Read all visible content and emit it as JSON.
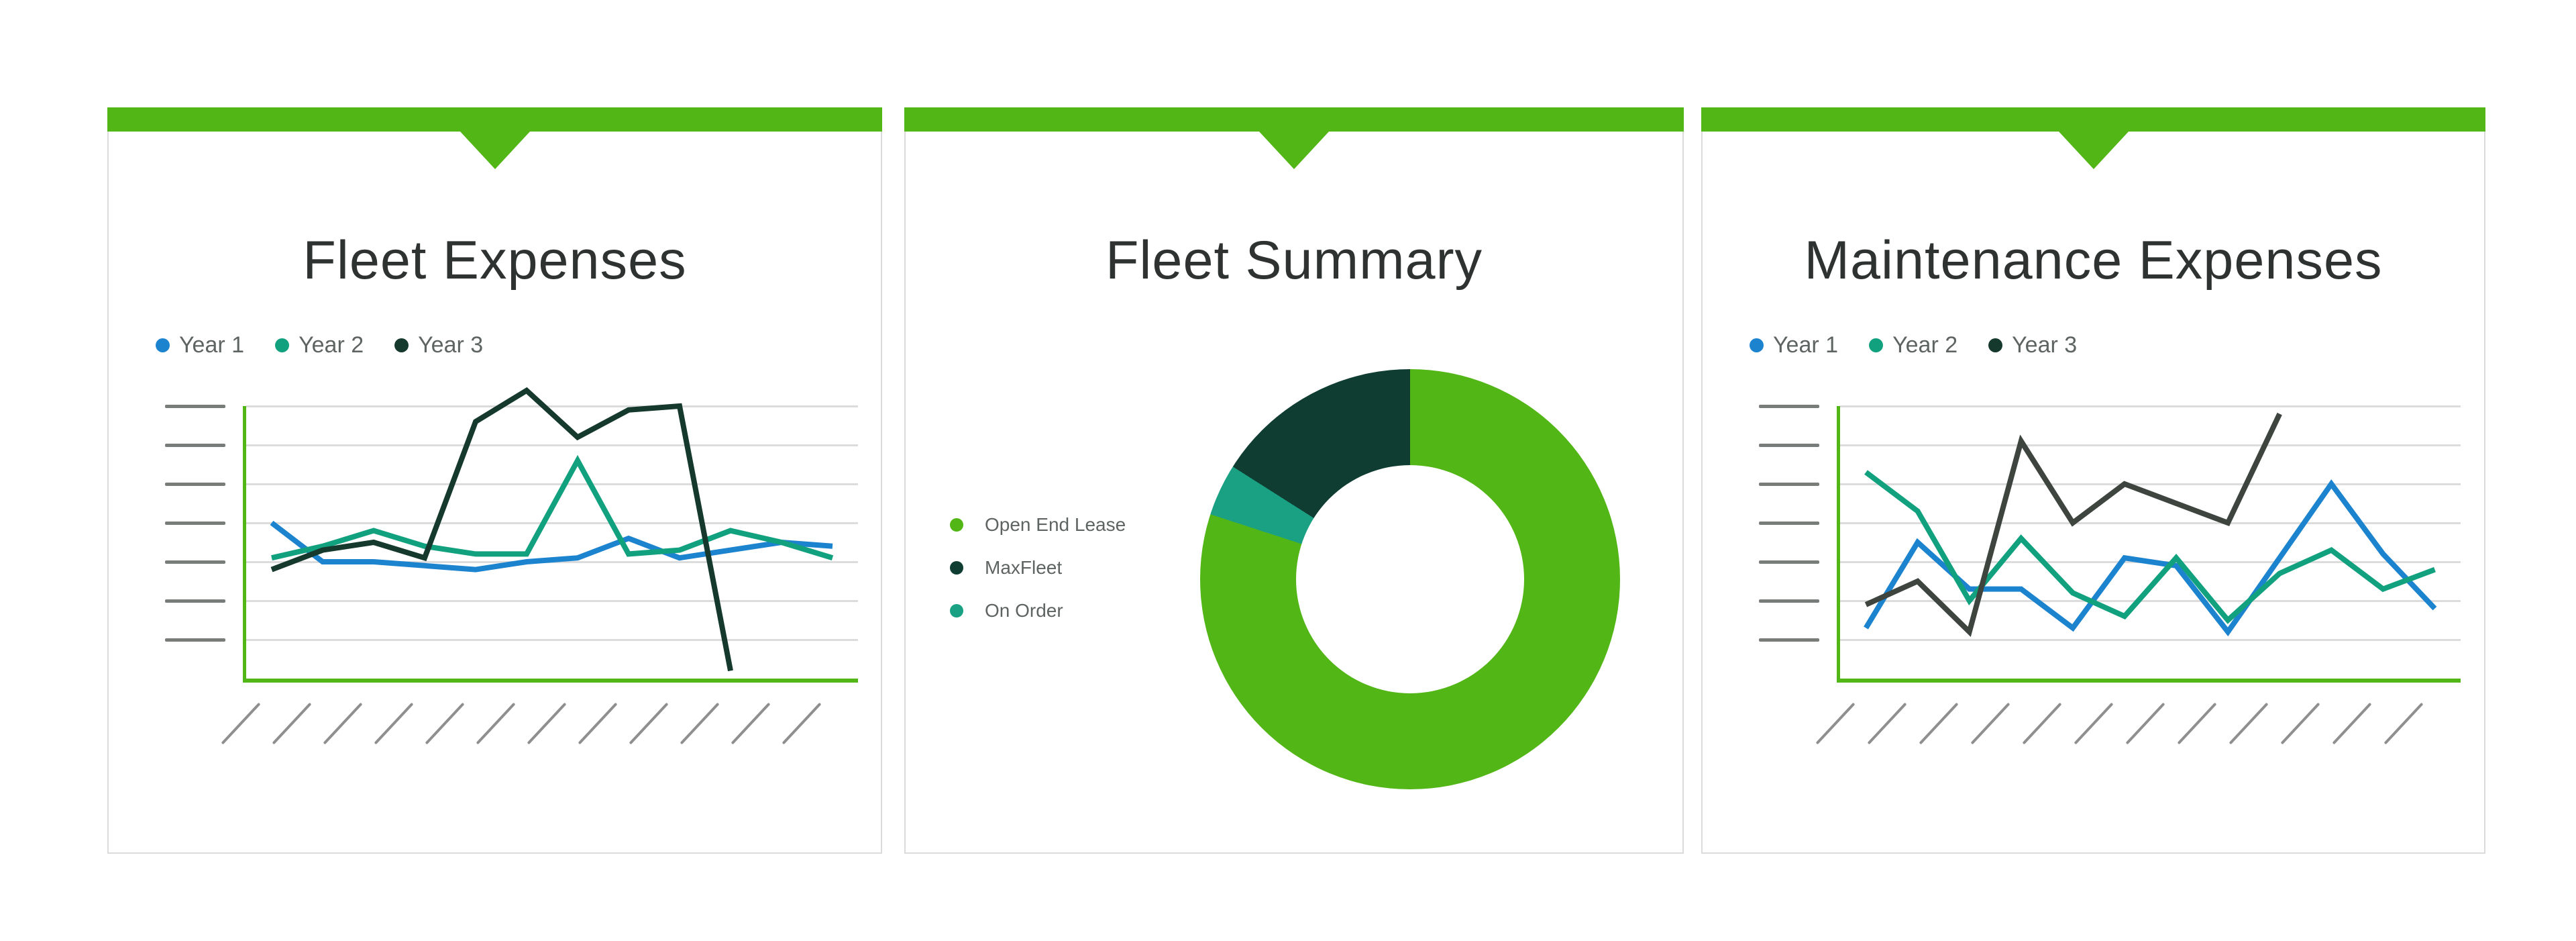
{
  "page": {
    "background": "#ffffff"
  },
  "colors": {
    "accent_green": "#52B616",
    "grid_gray": "#DCDCDC",
    "tick_gray": "#787D79",
    "hatch_gray": "#8F8F8F",
    "title_text": "#2E3230",
    "legend_text": "#5E6461",
    "card_border": "#DBDBDB"
  },
  "cards": [
    {
      "id": "fleet-expenses",
      "title": "Fleet Expenses",
      "legend": [
        {
          "label": "Year 1",
          "color": "#1C83CF"
        },
        {
          "label": "Year 2",
          "color": "#12A17E"
        },
        {
          "label": "Year 3",
          "color": "#16392D"
        }
      ],
      "chart_data": {
        "type": "line",
        "title": "Fleet Expenses",
        "xlabel": "",
        "ylabel": "",
        "x_categories_unlabeled": 12,
        "ylim": [
          0,
          7
        ],
        "gridlines": 7,
        "yticks_labeled": false,
        "legend_position": "top-left",
        "series": [
          {
            "name": "Year 1",
            "color": "#1C83CF",
            "values": [
              4.0,
              3.0,
              3.0,
              2.9,
              2.8,
              3.0,
              3.1,
              3.6,
              3.1,
              3.3,
              3.5,
              3.4
            ]
          },
          {
            "name": "Year 2",
            "color": "#12A17E",
            "values": [
              3.1,
              3.4,
              3.8,
              3.4,
              3.2,
              3.2,
              5.6,
              3.2,
              3.3,
              3.8,
              3.5,
              3.1
            ]
          },
          {
            "name": "Year 3",
            "color": "#16392D",
            "values": [
              2.8,
              3.3,
              3.5,
              3.1,
              6.6,
              7.4,
              6.2,
              6.9,
              7.0,
              0.2
            ]
          }
        ]
      }
    },
    {
      "id": "fleet-summary",
      "title": "Fleet Summary",
      "legend": [
        {
          "label": "Open End Lease",
          "color": "#52B616"
        },
        {
          "label": "MaxFleet",
          "color": "#0F3D32"
        },
        {
          "label": "On Order",
          "color": "#1AA183"
        }
      ],
      "chart_data": {
        "type": "pie",
        "title": "Fleet Summary",
        "donut": true,
        "start_angle_deg": 0,
        "clockwise_segments": [
          {
            "label": "Open End Lease",
            "percent": 80,
            "color": "#52B616"
          },
          {
            "label": "On Order",
            "percent": 4,
            "color": "#1AA183"
          },
          {
            "label": "MaxFleet",
            "percent": 16,
            "color": "#0F3D32"
          }
        ],
        "legend_position": "left"
      }
    },
    {
      "id": "maintenance-expenses",
      "title": "Maintenance Expenses",
      "legend": [
        {
          "label": "Year 1",
          "color": "#1C83CF"
        },
        {
          "label": "Year 2",
          "color": "#12A17E"
        },
        {
          "label": "Year 3",
          "color": "#16392D"
        }
      ],
      "chart_data": {
        "type": "line",
        "title": "Maintenance Expenses",
        "xlabel": "",
        "ylabel": "",
        "x_categories_unlabeled": 12,
        "ylim": [
          0,
          7
        ],
        "gridlines": 7,
        "yticks_labeled": false,
        "legend_position": "top-left",
        "series": [
          {
            "name": "Year 1",
            "color": "#1C83CF",
            "values": [
              1.3,
              3.5,
              2.3,
              2.3,
              1.3,
              3.1,
              2.9,
              1.2,
              3.1,
              5.0,
              3.2,
              1.8
            ]
          },
          {
            "name": "Year 2",
            "color": "#12A17E",
            "values": [
              5.3,
              4.3,
              2.0,
              3.6,
              2.2,
              1.6,
              3.1,
              1.5,
              2.7,
              3.3,
              2.3,
              2.8
            ]
          },
          {
            "name": "Year 3",
            "color": "#3E453F",
            "values": [
              1.9,
              2.5,
              1.2,
              6.1,
              4.0,
              5.0,
              4.5,
              4.0,
              6.8
            ]
          }
        ]
      }
    }
  ]
}
